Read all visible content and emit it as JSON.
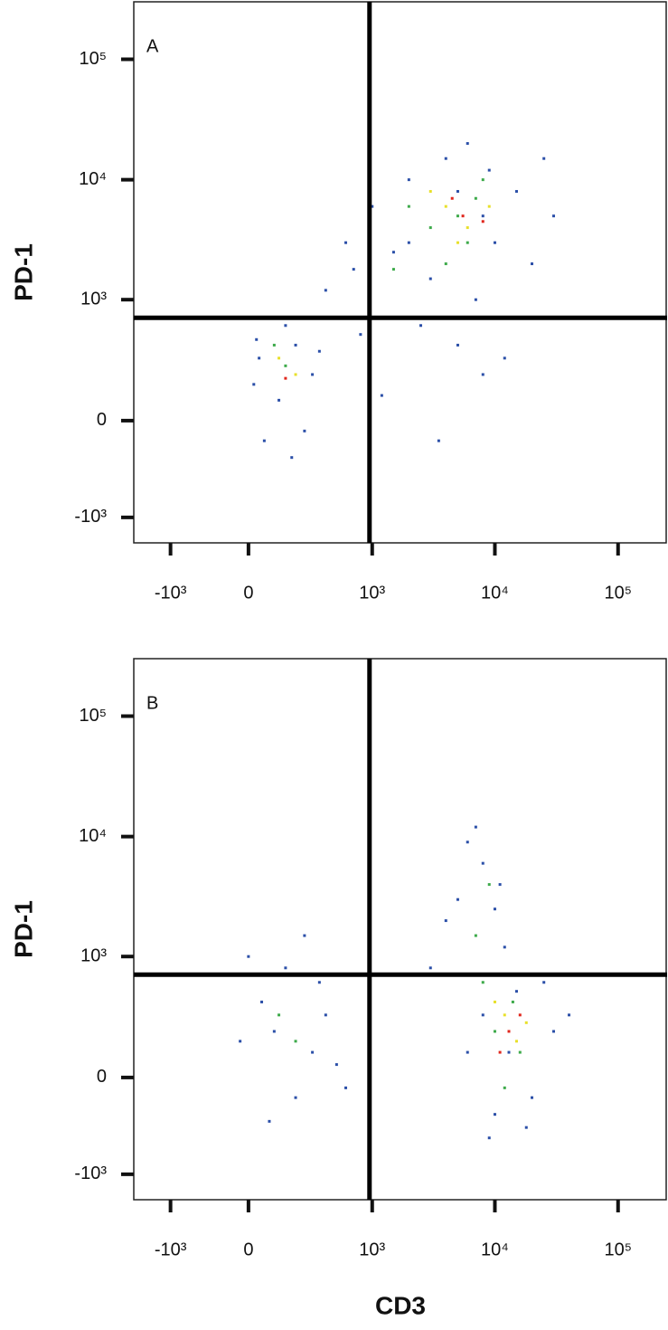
{
  "chart_data": [
    {
      "type": "scatter",
      "panel_label": "A",
      "y_label": "PD-1",
      "scale": "biexponential",
      "xlim": [
        -3000,
        250000
      ],
      "ylim": [
        -1850,
        300000
      ],
      "xticks": [
        {
          "value": -1000,
          "label": "-10³"
        },
        0,
        {
          "value": 1000,
          "label": "10³"
        },
        {
          "value": 10000,
          "label": "10⁴"
        },
        {
          "value": 100000,
          "label": "10⁵"
        }
      ],
      "yticks": [
        {
          "value": -1000,
          "label": "-10³"
        },
        0,
        {
          "value": 1000,
          "label": "10³"
        },
        {
          "value": 10000,
          "label": "10⁴"
        },
        {
          "value": 100000,
          "label": "10⁵"
        }
      ],
      "gate": {
        "x": 950,
        "y": 700
      },
      "series": [
        {
          "color": "#2b4fa8",
          "x": [
            40,
            120,
            200,
            60,
            300,
            150,
            20,
            250,
            90,
            350,
            180,
            30,
            2000,
            5000,
            8000,
            3000,
            1500,
            10000,
            4000,
            6000,
            700,
            400,
            15000,
            20000,
            2500,
            5000,
            8000,
            12000,
            3500,
            1200,
            800,
            30000,
            9000,
            1000,
            600,
            2000,
            25000,
            7000
          ],
          "y": [
            300,
            80,
            400,
            -100,
            200,
            600,
            150,
            -50,
            700,
            350,
            -200,
            450,
            3000,
            8000,
            5000,
            1500,
            2500,
            3000,
            15000,
            20000,
            1800,
            1200,
            8000,
            2000,
            600,
            400,
            200,
            300,
            -100,
            100,
            500,
            5000,
            12000,
            6000,
            3000,
            10000,
            15000,
            1000
          ]
        },
        {
          "color": "#3daa4a",
          "x": [
            150,
            100,
            5000,
            3000,
            7000,
            4000,
            2000,
            8000,
            6000,
            1500
          ],
          "y": [
            250,
            400,
            5000,
            4000,
            7000,
            2000,
            6000,
            10000,
            3000,
            1800
          ]
        },
        {
          "color": "#e8e02a",
          "x": [
            120,
            200,
            4000,
            6000,
            3000,
            5000,
            9000
          ],
          "y": [
            300,
            200,
            6000,
            4000,
            8000,
            3000,
            6000
          ]
        },
        {
          "color": "#e0261c",
          "x": [
            150,
            5500,
            8000,
            4500
          ],
          "y": [
            180,
            5000,
            4500,
            7000
          ]
        }
      ]
    },
    {
      "type": "scatter",
      "panel_label": "B",
      "y_label": "PD-1",
      "x_label": "CD3",
      "scale": "biexponential",
      "xlim": [
        -3000,
        250000
      ],
      "ylim": [
        -1850,
        300000
      ],
      "xticks": [
        {
          "value": -1000,
          "label": "-10³"
        },
        0,
        {
          "value": 1000,
          "label": "10³"
        },
        {
          "value": 10000,
          "label": "10⁴"
        },
        {
          "value": 100000,
          "label": "10⁵"
        }
      ],
      "yticks": [
        {
          "value": -1000,
          "label": "-10³"
        },
        0,
        {
          "value": 1000,
          "label": "10³"
        },
        {
          "value": 10000,
          "label": "10⁴"
        },
        {
          "value": 100000,
          "label": "10⁵"
        }
      ],
      "gate": {
        "x": 950,
        "y": 700
      },
      "series": [
        {
          "color": "#2b4fa8",
          "x": [
            100,
            300,
            50,
            200,
            400,
            -50,
            150,
            250,
            500,
            80,
            350,
            0,
            600,
            13000,
            8000,
            20000,
            15000,
            10000,
            30000,
            6000,
            25000,
            12000,
            5000,
            8000,
            7000,
            4000,
            10000,
            3000,
            18000,
            9000,
            40000,
            6000,
            11000
          ],
          "y": [
            200,
            100,
            400,
            -100,
            300,
            150,
            800,
            1500,
            50,
            -250,
            600,
            1000,
            -50,
            100,
            300,
            -100,
            500,
            -200,
            200,
            100,
            600,
            1200,
            3000,
            6000,
            12000,
            2000,
            2500,
            800,
            -300,
            -400,
            300,
            9000,
            4000
          ]
        },
        {
          "color": "#3daa4a",
          "x": [
            200,
            120,
            10000,
            14000,
            8000,
            16000,
            12000,
            7000,
            9000
          ],
          "y": [
            150,
            300,
            200,
            400,
            600,
            100,
            -50,
            1500,
            4000
          ]
        },
        {
          "color": "#e8e02a",
          "x": [
            12000,
            15000,
            10000,
            18000
          ],
          "y": [
            300,
            150,
            400,
            250
          ]
        },
        {
          "color": "#e0261c",
          "x": [
            13000,
            16000,
            11000
          ],
          "y": [
            200,
            300,
            100
          ]
        }
      ]
    }
  ]
}
